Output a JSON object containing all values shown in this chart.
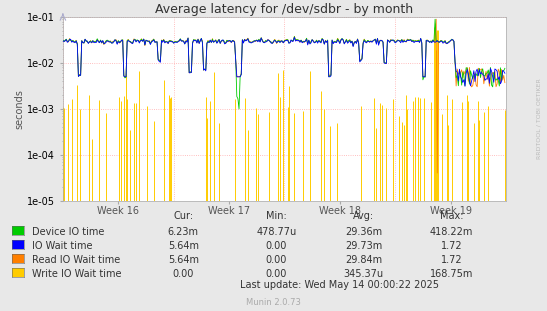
{
  "title": "Average latency for /dev/sdbr - by month",
  "ylabel": "seconds",
  "watermark": "RRDTOOL / TOBI OETIKER",
  "munin_version": "Munin 2.0.73",
  "last_update": "Last update: Wed May 14 00:00:22 2025",
  "week_labels": [
    "Week 16",
    "Week 17",
    "Week 18",
    "Week 19"
  ],
  "ymin": 1e-05,
  "ymax": 0.1,
  "bg_color": "#e8e8e8",
  "plot_bg_color": "#ffffff",
  "grid_color": "#ff9999",
  "title_color": "#333333",
  "legend": [
    {
      "label": "Device IO time",
      "color": "#00cc00",
      "cur": "6.23m",
      "min": "478.77u",
      "avg": "29.36m",
      "max": "418.22m"
    },
    {
      "label": "IO Wait time",
      "color": "#0000ff",
      "cur": "5.64m",
      "min": "0.00",
      "avg": "29.73m",
      "max": "1.72"
    },
    {
      "label": "Read IO Wait time",
      "color": "#ff7f00",
      "cur": "5.64m",
      "min": "0.00",
      "avg": "29.84m",
      "max": "1.72"
    },
    {
      "label": "Write IO Wait time",
      "color": "#ffcc00",
      "cur": "0.00",
      "min": "0.00",
      "avg": "345.37u",
      "max": "168.75m"
    }
  ],
  "n_points": 400,
  "seed": 42
}
